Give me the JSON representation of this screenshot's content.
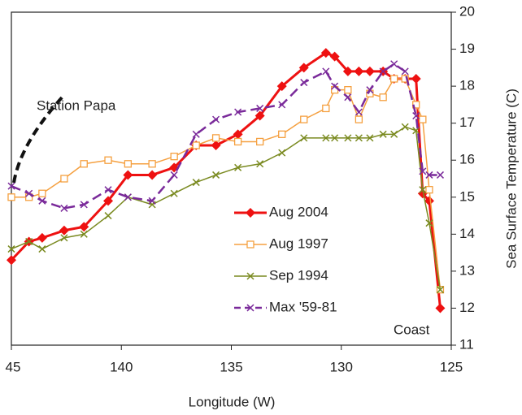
{
  "chart_data": {
    "type": "line",
    "x_label": "Longitude  (W)",
    "y_label": "Sea Surface Temperature (C)",
    "annotations": [
      "Station Papa",
      "Coast"
    ],
    "x": [
      145,
      144.2,
      143.6,
      142.6,
      141.7,
      140.6,
      139.7,
      138.6,
      137.6,
      136.6,
      135.7,
      134.7,
      133.7,
      132.7,
      131.7,
      130.7,
      130.3,
      129.7,
      129.2,
      128.7,
      128.1,
      127.6,
      127.1,
      126.6,
      126.3,
      126.0,
      125.5
    ],
    "series": [
      {
        "name": "Aug 2004",
        "color": "#ee1111",
        "marker": "diamond",
        "dash": false,
        "width": 3,
        "values": [
          13.3,
          13.8,
          13.9,
          14.1,
          14.2,
          14.9,
          15.6,
          15.6,
          15.8,
          16.4,
          16.4,
          16.7,
          17.2,
          18.0,
          18.5,
          18.9,
          18.8,
          18.4,
          18.4,
          18.4,
          18.4,
          18.2,
          18.2,
          18.2,
          15.1,
          14.9,
          12.0
        ]
      },
      {
        "name": "Aug 1997",
        "color": "#f5a040",
        "marker": "square",
        "dash": false,
        "width": 1.5,
        "values": [
          15.0,
          15.0,
          15.1,
          15.5,
          15.9,
          16.0,
          15.9,
          15.9,
          16.1,
          16.4,
          16.6,
          16.5,
          16.5,
          16.7,
          17.1,
          17.4,
          17.9,
          17.9,
          17.1,
          17.8,
          17.7,
          18.2,
          18.2,
          17.5,
          17.1,
          15.2,
          12.5
        ]
      },
      {
        "name": "Sep 1994",
        "color": "#7a8a20",
        "marker": "x",
        "dash": false,
        "width": 1.5,
        "values": [
          13.6,
          13.8,
          13.6,
          13.9,
          14.0,
          14.5,
          15.0,
          14.8,
          15.1,
          15.4,
          15.6,
          15.8,
          15.9,
          16.2,
          16.6,
          16.6,
          16.6,
          16.6,
          16.6,
          16.6,
          16.7,
          16.7,
          16.9,
          16.8,
          15.2,
          14.3,
          12.5
        ]
      },
      {
        "name": "Max '59-81",
        "color": "#7a2a9a",
        "marker": "x",
        "dash": true,
        "width": 2.5,
        "values": [
          15.3,
          15.1,
          14.9,
          14.7,
          14.8,
          15.2,
          15.0,
          14.9,
          15.6,
          16.7,
          17.1,
          17.3,
          17.4,
          17.5,
          18.1,
          18.4,
          18.0,
          17.7,
          17.3,
          17.9,
          18.4,
          18.6,
          18.4,
          17.2,
          15.7,
          15.6,
          15.6
        ]
      }
    ],
    "xlim": [
      145,
      125
    ],
    "xticks": [
      {
        "value": 145,
        "label": "45"
      },
      140,
      135,
      130,
      125
    ],
    "ylim": [
      11,
      20
    ],
    "yticks": [
      11,
      12,
      13,
      14,
      15,
      16,
      17,
      18,
      19,
      20
    ],
    "grid": false
  }
}
